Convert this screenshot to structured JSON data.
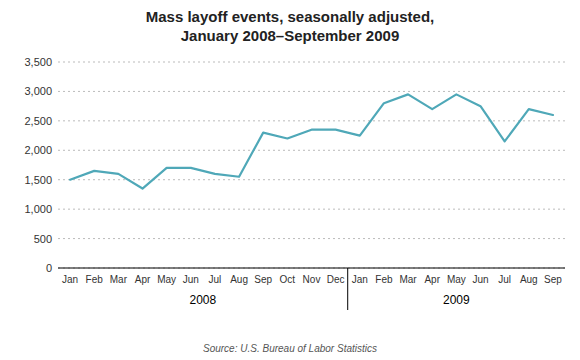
{
  "chart_data": {
    "type": "line",
    "title": "Mass layoff events, seasonally adjusted,",
    "subtitle": "January 2008–September 2009",
    "categories": [
      "Jan",
      "Feb",
      "Mar",
      "Apr",
      "May",
      "Jun",
      "Jul",
      "Aug",
      "Sep",
      "Oct",
      "Nov",
      "Dec",
      "Jan",
      "Feb",
      "Mar",
      "Apr",
      "May",
      "Jun",
      "Jul",
      "Aug",
      "Sep"
    ],
    "values": [
      1500,
      1650,
      1600,
      1350,
      1700,
      1700,
      1600,
      1550,
      2300,
      2200,
      2350,
      2350,
      2250,
      2800,
      2950,
      2700,
      2950,
      2750,
      2150,
      2700,
      2600
    ],
    "color": "#4fa8b8",
    "ylim": [
      0,
      3500
    ],
    "yticks": [
      0,
      500,
      {
        "value": 1000,
        "label": "1,000"
      },
      {
        "value": 1500,
        "label": "1,500"
      },
      {
        "value": 2000,
        "label": "2,000"
      },
      {
        "value": 2500,
        "label": "2,500"
      },
      {
        "value": 3000,
        "label": "3,000"
      },
      {
        "value": 3500,
        "label": "3,500"
      }
    ],
    "grid": true,
    "annotations": [
      {
        "text": "2008"
      },
      {
        "text": "2009"
      }
    ],
    "source": "Source: U.S. Bureau of Labor Statistics"
  }
}
